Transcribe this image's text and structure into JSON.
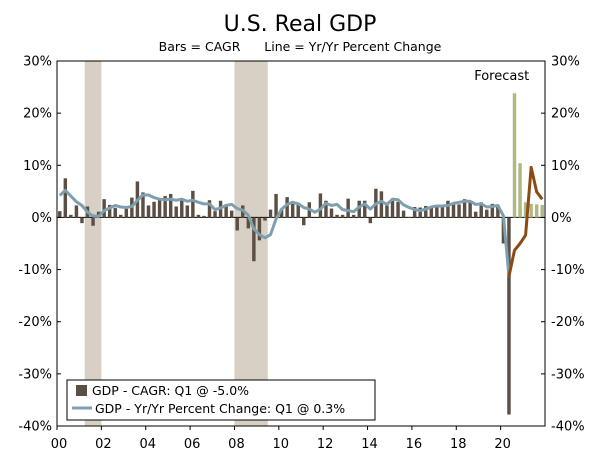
{
  "chart_data": {
    "type": "bar",
    "title": "U.S. Real GDP",
    "subtitle": "Bars = CAGR      Line = Yr/Yr Percent Change",
    "annotation": "Forecast",
    "x_tick_labels": [
      "00",
      "02",
      "04",
      "06",
      "08",
      "10",
      "12",
      "14",
      "16",
      "18",
      "20"
    ],
    "x_tick_years": [
      2000,
      2002,
      2004,
      2006,
      2008,
      2010,
      2012,
      2014,
      2016,
      2018,
      2020
    ],
    "y_tick_labels": [
      "30%",
      "20%",
      "10%",
      "0%",
      "-10%",
      "-20%",
      "-30%",
      "-40%"
    ],
    "y_tick_values": [
      30,
      20,
      10,
      0,
      -10,
      -20,
      -30,
      -40
    ],
    "ylim": [
      -40,
      30
    ],
    "x_range": [
      2000.0,
      2022.0
    ],
    "recessions": [
      [
        2001.25,
        2002.0
      ],
      [
        2008.0,
        2009.5
      ]
    ],
    "forecast_start": 2020.5,
    "legend": {
      "bars_label": "GDP - CAGR: Q1 @ -5.0%",
      "line_label": "GDP - Yr/Yr Percent Change: Q1 @ 0.3%"
    },
    "colors": {
      "bar_actual": "#5b4e43",
      "bar_forecast": "#aeb882",
      "line_actual": "#7f9faf",
      "line_forecast": "#8c4a14",
      "recession": "#d8d0c4",
      "frame": "#000000"
    },
    "series": [
      {
        "name": "GDP - CAGR",
        "kind": "bar",
        "start": 2000.0,
        "step": 0.25,
        "values": [
          1.2,
          7.5,
          0.5,
          2.3,
          -1.1,
          2.1,
          -1.6,
          1.1,
          3.5,
          2.4,
          1.8,
          0.5,
          2.1,
          3.8,
          6.9,
          4.8,
          2.3,
          3.0,
          3.7,
          4.1,
          4.5,
          2.1,
          3.5,
          2.3,
          5.1,
          0.5,
          0.3,
          3.3,
          1.2,
          3.2,
          2.5,
          1.3,
          -2.5,
          2.3,
          -2.1,
          -8.4,
          -4.4,
          -0.6,
          1.5,
          4.5,
          1.7,
          3.9,
          2.7,
          2.5,
          -1.5,
          2.9,
          -0.1,
          4.6,
          3.2,
          1.7,
          0.5,
          0.5,
          3.6,
          0.5,
          3.2,
          3.2,
          -1.1,
          5.5,
          5.0,
          2.3,
          3.2,
          3.0,
          1.3,
          0.1,
          2.0,
          1.9,
          2.2,
          2.0,
          2.3,
          2.2,
          3.2,
          2.8,
          2.5,
          3.5,
          2.9,
          1.1,
          2.9,
          1.5,
          2.6,
          2.4,
          -5.0,
          -37.8,
          23.8,
          10.4,
          2.9,
          2.6,
          2.5,
          2.4
        ],
        "forecast_from_index": 82
      },
      {
        "name": "GDP - Yr/Yr Percent Change",
        "kind": "line",
        "points": [
          [
            2000.0,
            4.2
          ],
          [
            2000.25,
            5.2
          ],
          [
            2000.5,
            4.1
          ],
          [
            2000.75,
            3.0
          ],
          [
            2001.0,
            2.3
          ],
          [
            2001.25,
            1.0
          ],
          [
            2001.5,
            0.3
          ],
          [
            2001.75,
            0.2
          ],
          [
            2002.0,
            1.3
          ],
          [
            2002.25,
            1.8
          ],
          [
            2002.5,
            2.3
          ],
          [
            2002.75,
            2.0
          ],
          [
            2003.0,
            1.9
          ],
          [
            2003.25,
            2.1
          ],
          [
            2003.5,
            3.3
          ],
          [
            2003.75,
            4.3
          ],
          [
            2004.0,
            4.3
          ],
          [
            2004.25,
            3.8
          ],
          [
            2004.5,
            3.5
          ],
          [
            2004.75,
            3.4
          ],
          [
            2005.0,
            3.5
          ],
          [
            2005.25,
            3.3
          ],
          [
            2005.5,
            3.5
          ],
          [
            2005.75,
            3.1
          ],
          [
            2006.0,
            3.3
          ],
          [
            2006.25,
            2.9
          ],
          [
            2006.5,
            2.6
          ],
          [
            2006.75,
            2.6
          ],
          [
            2007.0,
            1.5
          ],
          [
            2007.25,
            1.8
          ],
          [
            2007.5,
            2.3
          ],
          [
            2007.75,
            2.5
          ],
          [
            2008.0,
            1.7
          ],
          [
            2008.25,
            1.4
          ],
          [
            2008.5,
            0.4
          ],
          [
            2008.75,
            -2.2
          ],
          [
            2009.0,
            -3.3
          ],
          [
            2009.25,
            -3.9
          ],
          [
            2009.5,
            -3.3
          ],
          [
            2009.75,
            -0.3
          ],
          [
            2010.0,
            1.6
          ],
          [
            2010.25,
            2.5
          ],
          [
            2010.5,
            2.9
          ],
          [
            2010.75,
            2.6
          ],
          [
            2011.0,
            1.9
          ],
          [
            2011.25,
            1.6
          ],
          [
            2011.5,
            1.0
          ],
          [
            2011.75,
            1.6
          ],
          [
            2012.0,
            2.7
          ],
          [
            2012.25,
            2.3
          ],
          [
            2012.5,
            2.5
          ],
          [
            2012.75,
            1.5
          ],
          [
            2013.0,
            1.3
          ],
          [
            2013.25,
            1.1
          ],
          [
            2013.5,
            2.0
          ],
          [
            2013.75,
            2.6
          ],
          [
            2014.0,
            1.6
          ],
          [
            2014.25,
            2.6
          ],
          [
            2014.5,
            3.1
          ],
          [
            2014.75,
            2.5
          ],
          [
            2015.0,
            3.5
          ],
          [
            2015.25,
            3.4
          ],
          [
            2015.5,
            2.4
          ],
          [
            2015.75,
            1.9
          ],
          [
            2016.0,
            1.5
          ],
          [
            2016.25,
            1.3
          ],
          [
            2016.5,
            1.6
          ],
          [
            2016.75,
            2.0
          ],
          [
            2017.0,
            2.2
          ],
          [
            2017.25,
            2.2
          ],
          [
            2017.5,
            2.3
          ],
          [
            2017.75,
            2.7
          ],
          [
            2018.0,
            2.9
          ],
          [
            2018.25,
            3.1
          ],
          [
            2018.5,
            3.1
          ],
          [
            2018.75,
            2.5
          ],
          [
            2019.0,
            2.6
          ],
          [
            2019.25,
            2.0
          ],
          [
            2019.5,
            2.1
          ],
          [
            2019.75,
            2.3
          ],
          [
            2020.0,
            0.3
          ],
          [
            2020.25,
            -11.3
          ],
          [
            2020.5,
            -6.3
          ],
          [
            2020.75,
            -5.0
          ],
          [
            2021.0,
            -3.4
          ],
          [
            2021.25,
            9.6
          ],
          [
            2021.5,
            4.9
          ],
          [
            2021.75,
            3.5
          ]
        ],
        "forecast_from_index": 81
      }
    ]
  }
}
